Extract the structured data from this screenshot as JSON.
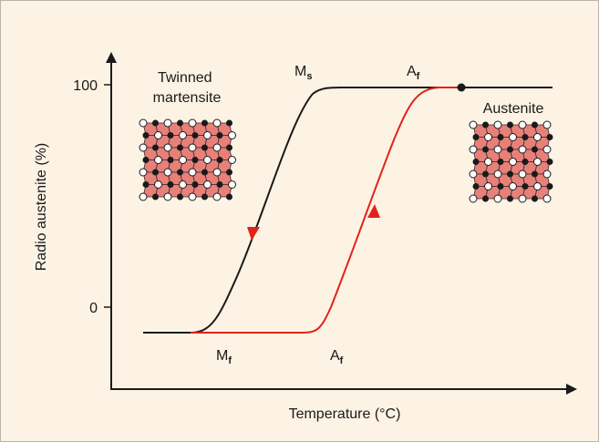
{
  "figure": {
    "y_axis_label": "Radio austenite (%)",
    "x_axis_label": "Temperature (°C)",
    "y_ticks": [
      {
        "label": "100"
      },
      {
        "label": "0"
      }
    ],
    "curve_labels": {
      "ms": {
        "main": "M",
        "sub": "s"
      },
      "af_top": {
        "main": "A",
        "sub": "f"
      },
      "mf": {
        "main": "M",
        "sub": "f"
      },
      "af_bottom": {
        "main": "A",
        "sub": "f"
      }
    },
    "phase_labels": {
      "twinned_line1": "Twinned",
      "twinned_line2": "martensite",
      "austenite": "Austenite"
    },
    "colors": {
      "background": "#fdf3e4",
      "cooling_curve": "#1a1a1a",
      "heating_curve": "#e2231a",
      "lattice_fill": "#e8807a"
    }
  }
}
